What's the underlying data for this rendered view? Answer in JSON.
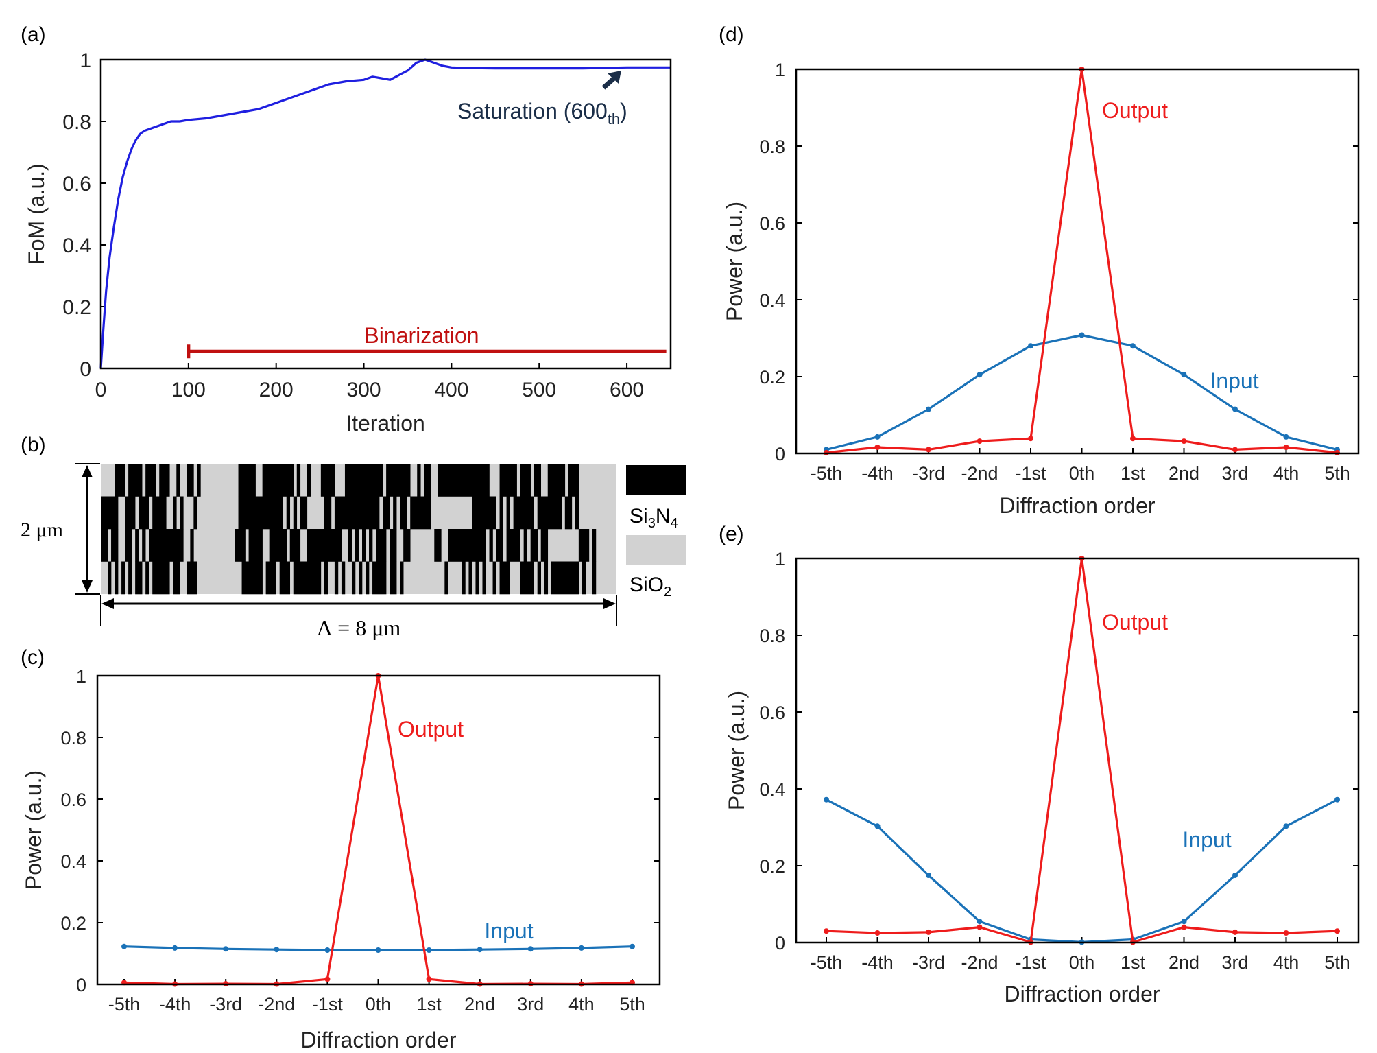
{
  "colors": {
    "blue_fom": "#1f1fe0",
    "input_blue": "#1a72b8",
    "output_red": "#ee1c1c",
    "binarization_red": "#c01010",
    "arrow_navy": "#1b2e48",
    "si3n4": "#000000",
    "sio2": "#d2d2d2"
  },
  "panel_labels": {
    "a": "(a)",
    "b": "(b)",
    "c": "(c)",
    "d": "(d)",
    "e": "(e)"
  },
  "chart_data": [
    {
      "id": "a",
      "type": "line",
      "xlabel": "Iteration",
      "ylabel": "FoM (a.u.)",
      "xlim": [
        0,
        650
      ],
      "ylim": [
        0,
        1
      ],
      "xticks": [
        0,
        100,
        200,
        300,
        400,
        500,
        600
      ],
      "yticks": [
        0,
        0.2,
        0.4,
        0.6,
        0.8,
        1
      ],
      "ytick_labels": [
        "0",
        "0.2",
        "0.4",
        "0.6",
        "0.8",
        "1"
      ],
      "series": [
        {
          "name": "FoM",
          "x": [
            0,
            3,
            6,
            10,
            15,
            20,
            25,
            30,
            35,
            40,
            45,
            50,
            60,
            70,
            80,
            90,
            100,
            120,
            140,
            160,
            180,
            200,
            220,
            240,
            260,
            280,
            300,
            310,
            320,
            330,
            340,
            350,
            360,
            370,
            380,
            390,
            400,
            420,
            450,
            500,
            550,
            600,
            650
          ],
          "y": [
            0,
            0.13,
            0.25,
            0.36,
            0.46,
            0.55,
            0.62,
            0.67,
            0.71,
            0.74,
            0.76,
            0.77,
            0.78,
            0.79,
            0.8,
            0.8,
            0.805,
            0.81,
            0.82,
            0.83,
            0.84,
            0.86,
            0.88,
            0.9,
            0.92,
            0.93,
            0.935,
            0.945,
            0.94,
            0.935,
            0.95,
            0.965,
            0.99,
            1.0,
            0.99,
            0.98,
            0.975,
            0.973,
            0.972,
            0.972,
            0.972,
            0.975,
            0.975
          ]
        }
      ],
      "binarization": {
        "label": "Binarization",
        "x_start": 100,
        "x_end": 645,
        "y": 0.055
      },
      "annotation": {
        "text": "Saturation (600",
        "sub": "th",
        "close": ")",
        "x": 600,
        "y": 0.975
      }
    },
    {
      "id": "b",
      "type": "heatmap",
      "title": "",
      "rows": 4,
      "columns": 150,
      "pattern": [
        "000011101111011101110010011010000000000011111001111111110100100011110001111111111101111111001011001111111111111110001111101110110011111011100000",
        "111110011101110111100101000100000000000011111111111110101011000001101111111111111011010110111111000000000000111111101010111111011111110110100000",
        "110110011010101111111111001000000000000111011110011111011100111111111100101010101110110011000000011001111111111101011011110101101100000000011101",
        "001010101011010111110110011100000000000001111110111011101111111101001010010101011110110100000000000010000101010100101110001111010101111111101001"
      ],
      "height_label": "2 μm",
      "period_label": "Λ = 8 μm",
      "legend": {
        "material1": "Si",
        "material1_sub1": "3",
        "material1_mid": "N",
        "material1_sub2": "4",
        "material2": "SiO",
        "material2_sub": "2"
      }
    },
    {
      "id": "c",
      "type": "line",
      "xlabel": "Diffraction order",
      "ylabel": "Power (a.u.)",
      "categories": [
        "-5th",
        "-4th",
        "-3rd",
        "-2nd",
        "-1st",
        "0th",
        "1st",
        "2nd",
        "3rd",
        "4th",
        "5th"
      ],
      "ylim": [
        0,
        1
      ],
      "yticks": [
        0,
        0.2,
        0.4,
        0.6,
        0.8,
        1
      ],
      "ytick_labels": [
        "0",
        "0.2",
        "0.4",
        "0.6",
        "0.8",
        "1"
      ],
      "series": [
        {
          "name": "Input",
          "values": [
            0.123,
            0.118,
            0.115,
            0.113,
            0.111,
            0.111,
            0.111,
            0.113,
            0.115,
            0.118,
            0.123
          ]
        },
        {
          "name": "Output",
          "values": [
            0.006,
            0.001,
            0.002,
            0.001,
            0.017,
            1.0,
            0.017,
            0.001,
            0.002,
            0.001,
            0.006
          ]
        }
      ],
      "labels": {
        "input": "Input",
        "output": "Output"
      }
    },
    {
      "id": "d",
      "type": "line",
      "xlabel": "Diffraction order",
      "ylabel": "Power (a.u.)",
      "categories": [
        "-5th",
        "-4th",
        "-3rd",
        "-2nd",
        "-1st",
        "0th",
        "1st",
        "2nd",
        "3rd",
        "4th",
        "5th"
      ],
      "ylim": [
        0,
        1
      ],
      "yticks": [
        0,
        0.2,
        0.4,
        0.6,
        0.8,
        1
      ],
      "ytick_labels": [
        "0",
        "0.2",
        "0.4",
        "0.6",
        "0.8",
        "1"
      ],
      "series": [
        {
          "name": "Input",
          "values": [
            0.01,
            0.043,
            0.115,
            0.205,
            0.28,
            0.308,
            0.28,
            0.205,
            0.115,
            0.043,
            0.01
          ]
        },
        {
          "name": "Output",
          "values": [
            0.002,
            0.016,
            0.01,
            0.032,
            0.039,
            1.0,
            0.039,
            0.032,
            0.01,
            0.016,
            0.002
          ]
        }
      ],
      "labels": {
        "input": "Input",
        "output": "Output"
      }
    },
    {
      "id": "e",
      "type": "line",
      "xlabel": "Diffraction order",
      "ylabel": "Power (a.u.)",
      "categories": [
        "-5th",
        "-4th",
        "-3rd",
        "-2nd",
        "-1st",
        "0th",
        "1st",
        "2nd",
        "3rd",
        "4th",
        "5th"
      ],
      "ylim": [
        0,
        1
      ],
      "yticks": [
        0,
        0.2,
        0.4,
        0.6,
        0.8,
        1
      ],
      "ytick_labels": [
        "0",
        "0.2",
        "0.4",
        "0.6",
        "0.8",
        "1"
      ],
      "series": [
        {
          "name": "Input",
          "values": [
            0.372,
            0.303,
            0.175,
            0.055,
            0.008,
            0.001,
            0.008,
            0.055,
            0.175,
            0.303,
            0.372
          ]
        },
        {
          "name": "Output",
          "values": [
            0.03,
            0.025,
            0.027,
            0.04,
            0.001,
            1.0,
            0.001,
            0.04,
            0.027,
            0.025,
            0.03
          ]
        }
      ],
      "labels": {
        "input": "Input",
        "output": "Output"
      }
    }
  ]
}
